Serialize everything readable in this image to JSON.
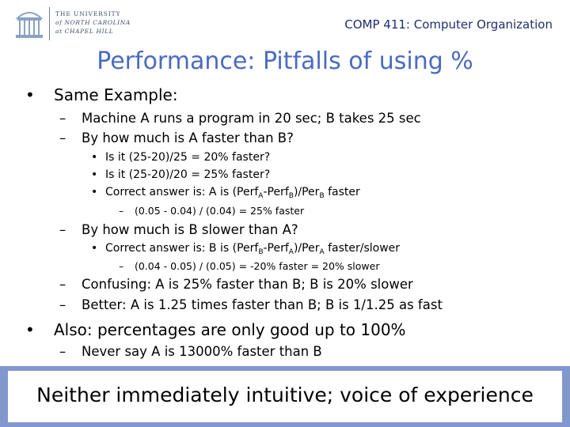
{
  "header": {
    "logo": {
      "line1": "THE UNIVERSITY",
      "line2": "of NORTH CAROLINA",
      "line3": "at CHAPEL HILL",
      "icon": "old-well-icon"
    },
    "course": "COMP 411: Computer Organization"
  },
  "slide": {
    "title": "Performance: Pitfalls of using %",
    "b1": "Same Example:",
    "b1_1": "Machine A runs a program in 20 sec; B takes 25 sec",
    "b1_2": "By how much is A faster than B?",
    "b1_2_1": "Is it (25-20)/25 = 20% faster?",
    "b1_2_2": "Is it (25-20)/20 = 25% faster?",
    "b1_2_3": {
      "t1": "Correct answer is:  A is (Perf",
      "s1": "A",
      "t2": "-Perf",
      "s2": "B",
      "t3": ")/Per",
      "s3": "B",
      "t4": " faster"
    },
    "b1_2_3_1": "(0.05 - 0.04) / (0.04) = 25% faster",
    "b1_3": "By how much is B slower than A?",
    "b1_3_1": {
      "t1": "Correct answer is:  B is (Perf",
      "s1": "B",
      "t2": "-Perf",
      "s2": "A",
      "t3": ")/Per",
      "s3": "A",
      "t4": " faster/slower"
    },
    "b1_3_1_1": "(0.04 - 0.05) / (0.05) = -20% faster = 20% slower",
    "b1_4": "Confusing:  A is 25% faster than B; B is 20% slower",
    "b1_5": "Better:  A is 1.25 times faster than B; B is 1/1.25 as fast",
    "b2": "Also:  percentages are only good up to 100%",
    "b2_1": "Never say A is 13000% faster than B",
    "footer": "Neither immediately intuitive; voice of experience"
  },
  "markers": {
    "bullet": "•",
    "dash": "–"
  },
  "colors": {
    "title": "#4a6bbf",
    "course": "#1f2f6f",
    "footer_border": "#8397cf"
  }
}
